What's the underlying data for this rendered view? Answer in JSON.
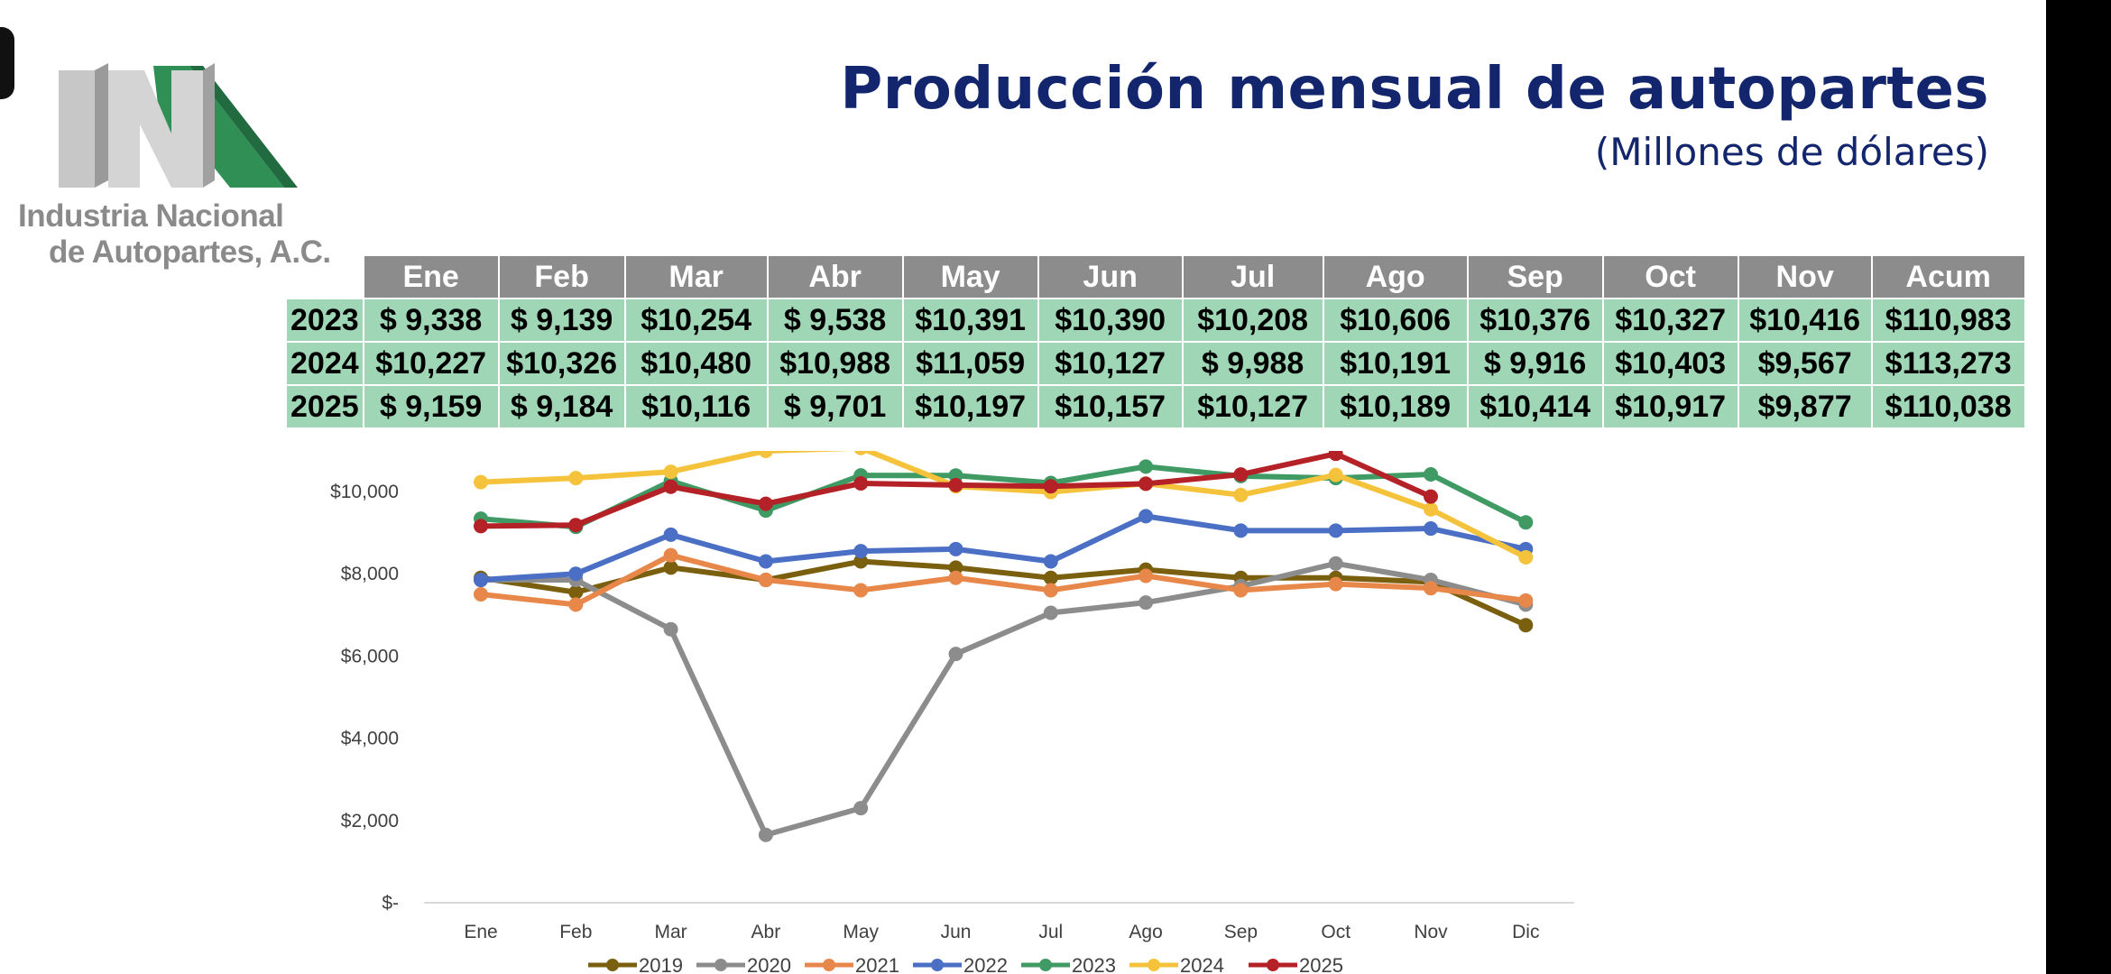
{
  "logo": {
    "line1": "Industria Nacional",
    "line2": "de Autopartes, A.C.",
    "colors": {
      "silver": "#bfbfbf",
      "green": "#2f8f55"
    }
  },
  "header": {
    "title": "Producción mensual de autopartes",
    "subtitle": "(Millones de dólares)"
  },
  "table": {
    "columns": [
      "Ene",
      "Feb",
      "Mar",
      "Abr",
      "May",
      "Jun",
      "Jul",
      "Ago",
      "Sep",
      "Oct",
      "Nov",
      "Acum"
    ],
    "rows": [
      {
        "year": "2023",
        "cells": [
          "$ 9,338",
          "$ 9,139",
          "$10,254",
          "$ 9,538",
          "$10,391",
          "$10,390",
          "$10,208",
          "$10,606",
          "$10,376",
          "$10,327",
          "$10,416",
          "$110,983"
        ]
      },
      {
        "year": "2024",
        "cells": [
          "$10,227",
          "$10,326",
          "$10,480",
          "$10,988",
          "$11,059",
          "$10,127",
          "$ 9,988",
          "$10,191",
          "$ 9,916",
          "$10,403",
          "$9,567",
          "$113,273"
        ]
      },
      {
        "year": "2025",
        "cells": [
          "$ 9,159",
          "$ 9,184",
          "$10,116",
          "$ 9,701",
          "$10,197",
          "$10,157",
          "$10,127",
          "$10,189",
          "$10,414",
          "$10,917",
          "$9,877",
          "$110,038"
        ]
      }
    ],
    "header_bg": "#8c8c8c",
    "cell_bg": "#9fd6b6"
  },
  "chart_data": {
    "type": "line",
    "title": "",
    "xlabel": "",
    "ylabel": "",
    "categories": [
      "Ene",
      "Feb",
      "Mar",
      "Abr",
      "May",
      "Jun",
      "Jul",
      "Ago",
      "Sep",
      "Oct",
      "Nov",
      "Dic"
    ],
    "ylim": [
      0,
      10000
    ],
    "yticks": [
      0,
      2000,
      4000,
      6000,
      8000,
      10000
    ],
    "ytick_labels": [
      "$-",
      "$2,000",
      "$4,000",
      "$6,000",
      "$8,000",
      "$10,000"
    ],
    "grid": false,
    "legend": "bottom",
    "series": [
      {
        "name": "2019",
        "color": "#7a5f0f",
        "values": [
          7900,
          7550,
          8150,
          7850,
          8300,
          8150,
          7900,
          8100,
          7900,
          7900,
          7800,
          6750
        ]
      },
      {
        "name": "2020",
        "color": "#8c8c8c",
        "values": [
          7850,
          7850,
          6650,
          1650,
          2300,
          6050,
          7050,
          7300,
          7700,
          8250,
          7850,
          7250
        ]
      },
      {
        "name": "2021",
        "color": "#e8874a",
        "values": [
          7500,
          7250,
          8450,
          7850,
          7600,
          7900,
          7600,
          7950,
          7600,
          7750,
          7650,
          7350
        ]
      },
      {
        "name": "2022",
        "color": "#4a6fc4",
        "values": [
          7850,
          8000,
          8950,
          8300,
          8550,
          8600,
          8300,
          9400,
          9050,
          9050,
          9100,
          8600
        ]
      },
      {
        "name": "2023",
        "color": "#3f9a64",
        "values": [
          9338,
          9139,
          10254,
          9538,
          10391,
          10390,
          10208,
          10606,
          10376,
          10327,
          10416,
          9250
        ]
      },
      {
        "name": "2024",
        "color": "#f5c33b",
        "values": [
          10227,
          10326,
          10480,
          10988,
          11059,
          10127,
          9988,
          10191,
          9916,
          10403,
          9567,
          8400
        ]
      },
      {
        "name": "2025",
        "color": "#b42126",
        "values": [
          9159,
          9184,
          10116,
          9701,
          10197,
          10157,
          10127,
          10189,
          10414,
          10917,
          9877,
          null
        ]
      }
    ]
  }
}
